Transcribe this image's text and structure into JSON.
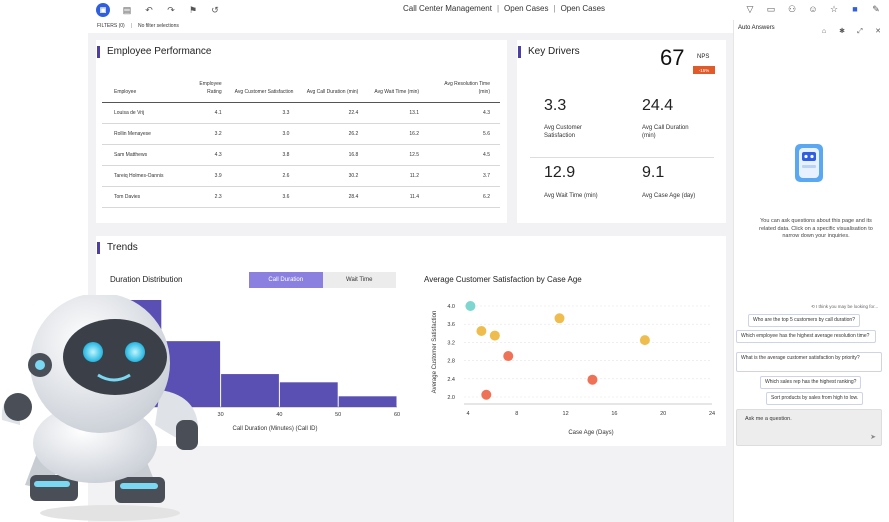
{
  "topbar": {
    "breadcrumbs": [
      "Call Center Management",
      "Open Cases",
      "Open Cases"
    ],
    "left_icons": [
      "app-logo-icon",
      "page-icon",
      "undo-icon",
      "redo-icon",
      "bookmark-icon",
      "history-icon"
    ],
    "right_icons": [
      "filter-icon",
      "comment-icon",
      "share-icon",
      "user-icon",
      "star-icon",
      "panel-icon",
      "edit-icon"
    ]
  },
  "filters": {
    "label": "FILTERS (0)",
    "value": "No filter selections"
  },
  "employee": {
    "title": "Employee Performance",
    "columns": [
      "Employee",
      "Employee Rating",
      "Avg Customer Satisfaction",
      "Avg Call Duration (min)",
      "Avg Wait Time (min)",
      "Avg Resolution Time (min)"
    ],
    "rows": [
      [
        "Louisa de Vrij",
        "4.1",
        "3.3",
        "22.4",
        "13.1",
        "4.3"
      ],
      [
        "Rollin Menayese",
        "3.2",
        "3.0",
        "26.2",
        "16.2",
        "5.6"
      ],
      [
        "Sam Matthews",
        "4.3",
        "3.8",
        "16.8",
        "12.5",
        "4.5"
      ],
      [
        "Tareiq Holmes-Oannis",
        "3.9",
        "2.6",
        "30.2",
        "11.2",
        "3.7"
      ],
      [
        "Tom Davies",
        "2.3",
        "3.6",
        "28.4",
        "11.4",
        "6.2"
      ]
    ]
  },
  "key_drivers": {
    "title": "Key Drivers",
    "nps": {
      "value": "67",
      "label": "NPS",
      "change": "-15%"
    },
    "metrics": [
      {
        "value": "3.3",
        "label": "Avg Customer Satisfaction"
      },
      {
        "value": "24.4",
        "label": "Avg Call Duration (min)"
      },
      {
        "value": "12.9",
        "label": "Avg Wait Time (min)"
      },
      {
        "value": "9.1",
        "label": "Avg Case Age (day)"
      }
    ]
  },
  "trends": {
    "title": "Trends",
    "toggle": {
      "active": "Call Duration",
      "inactive": "Wait Time"
    }
  },
  "chart_data": [
    {
      "type": "bar",
      "title": "Duration Distribution",
      "xlabel": "Call Duration (Minutes) (Call ID)",
      "ylabel": "",
      "x_ticks": [
        "30",
        "40",
        "50",
        "60"
      ],
      "y_ticks": [
        "12"
      ],
      "bin_edges": [
        10,
        20,
        30,
        40,
        50,
        60
      ],
      "values": [
        13,
        8,
        4,
        3,
        1.3
      ]
    },
    {
      "type": "scatter",
      "title": "Average Customer Satisfaction by Case Age",
      "xlabel": "Case Age (Days)",
      "ylabel": "Average Customer Satisfaction",
      "xlim": [
        4,
        24
      ],
      "ylim": [
        2.0,
        4.0
      ],
      "x_ticks": [
        "4",
        "8",
        "12",
        "16",
        "20",
        "24"
      ],
      "y_ticks": [
        "2.0",
        "2.4",
        "2.8",
        "3.2",
        "3.6",
        "4.0"
      ],
      "points": [
        {
          "x": 4.2,
          "y": 4.0,
          "color": "#7dd6cf"
        },
        {
          "x": 5.1,
          "y": 3.45,
          "color": "#efbd4e"
        },
        {
          "x": 6.2,
          "y": 3.35,
          "color": "#efbd4e"
        },
        {
          "x": 11.5,
          "y": 3.73,
          "color": "#efbd4e"
        },
        {
          "x": 18.5,
          "y": 3.25,
          "color": "#efbd4e"
        },
        {
          "x": 7.3,
          "y": 2.9,
          "color": "#ef7256"
        },
        {
          "x": 14.2,
          "y": 2.38,
          "color": "#ef7256"
        },
        {
          "x": 5.5,
          "y": 2.05,
          "color": "#ef7256"
        }
      ]
    }
  ],
  "assistant": {
    "title": "Auto Answers",
    "header_icons": [
      "pin-icon",
      "settings-icon",
      "expand-icon",
      "close-icon"
    ],
    "message": "You can ask questions about this page and its related data. Click on a specific visualisation to narrow down your inquiries.",
    "think_label": "I think you may be looking for...",
    "suggestions": [
      "Who are the top 5 customers by call duration?",
      "Which employee has the highest average resolution time?",
      "What is the average customer satisfaction by priority?",
      "Which sales rep has the highest ranking?",
      "Sort products by sales from high to low."
    ],
    "input_placeholder": "Ask me a question."
  }
}
